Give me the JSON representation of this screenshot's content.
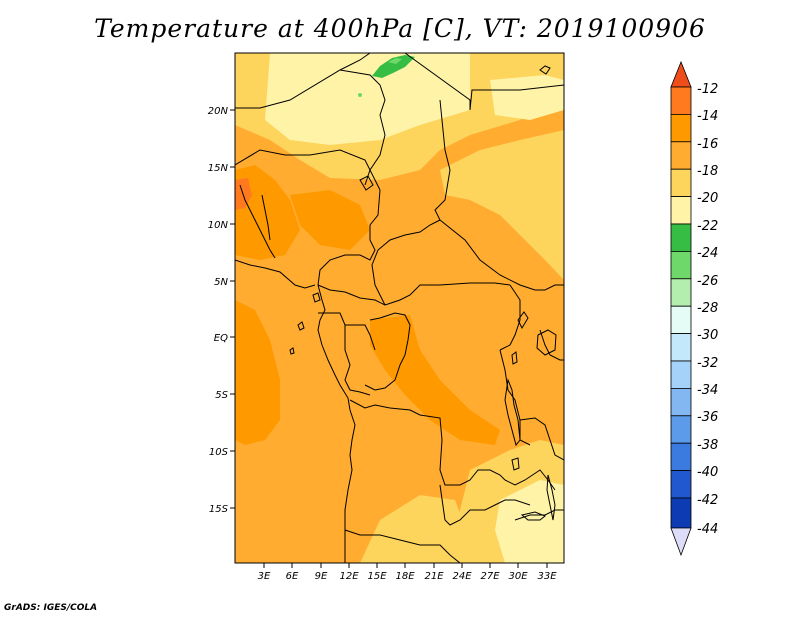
{
  "title": "Temperature at 400hPa [C], VT: 2019100906",
  "footer": "GrADS: IGES/COLA",
  "map": {
    "region": "Central Africa",
    "lat_labels": [
      "20N",
      "15N",
      "10N",
      "5N",
      "EQ",
      "5S",
      "10S",
      "15S"
    ],
    "lon_labels": [
      "3E",
      "6E",
      "9E",
      "12E",
      "15E",
      "18E",
      "21E",
      "24E",
      "27E",
      "30E",
      "33E"
    ]
  },
  "colorbar": {
    "labels": [
      "-12",
      "-14",
      "-16",
      "-18",
      "-20",
      "-22",
      "-24",
      "-26",
      "-28",
      "-30",
      "-32",
      "-34",
      "-36",
      "-38",
      "-40",
      "-42",
      "-44"
    ],
    "colors": [
      "#ff7a1f",
      "#ff9900",
      "#ffac30",
      "#fdd45c",
      "#fff3a8",
      "#36bd44",
      "#6fd86b",
      "#b4eeae",
      "#e4fbf6",
      "#c3e8fb",
      "#a4d2f8",
      "#83b7f2",
      "#5b9bea",
      "#3b7be0",
      "#2158cf",
      "#0c3bb4"
    ],
    "top_arrow_color": "#ef4e1b",
    "bottom_arrow_color": "#ddddfa"
  },
  "palette": {
    "field_base": "#ffac30",
    "field_warm": "#ff9900",
    "field_cool": "#fdd45c",
    "field_cold": "#fff3a8",
    "field_green": "#36bd44",
    "field_lightgreen": "#6fd86b"
  }
}
